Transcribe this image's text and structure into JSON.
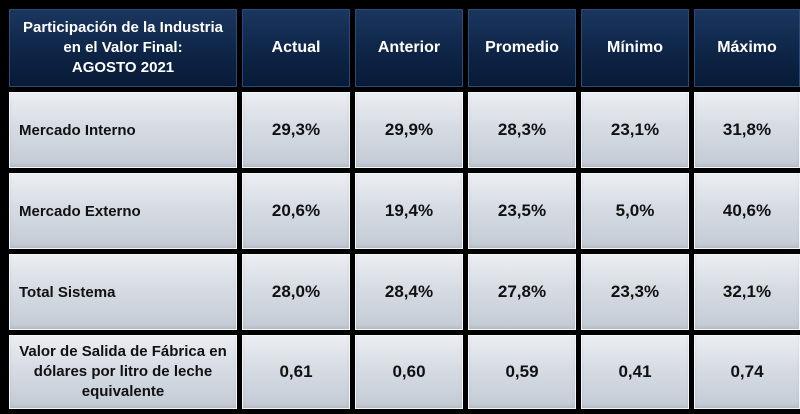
{
  "header": {
    "corner_lines": [
      "Participación de la Industria",
      "en el Valor Final:",
      "AGOSTO 2021"
    ],
    "columns": [
      "Actual",
      "Anterior",
      "Promedio",
      "Mínimo",
      "Máximo"
    ]
  },
  "rows": [
    {
      "label_lines": [
        "Mercado Interno"
      ],
      "values": [
        "29,3%",
        "29,9%",
        "28,3%",
        "23,1%",
        "31,8%"
      ]
    },
    {
      "label_lines": [
        "Mercado Externo"
      ],
      "values": [
        "20,6%",
        "19,4%",
        "23,5%",
        "5,0%",
        "40,6%"
      ]
    },
    {
      "label_lines": [
        "Total Sistema"
      ],
      "values": [
        "28,0%",
        "28,4%",
        "27,8%",
        "23,3%",
        "32,1%"
      ]
    },
    {
      "label_lines": [
        "Valor de Salida de Fábrica en",
        "dólares por litro de leche",
        "equivalente"
      ],
      "values": [
        "0,61",
        "0,60",
        "0,59",
        "0,41",
        "0,74"
      ]
    }
  ]
}
